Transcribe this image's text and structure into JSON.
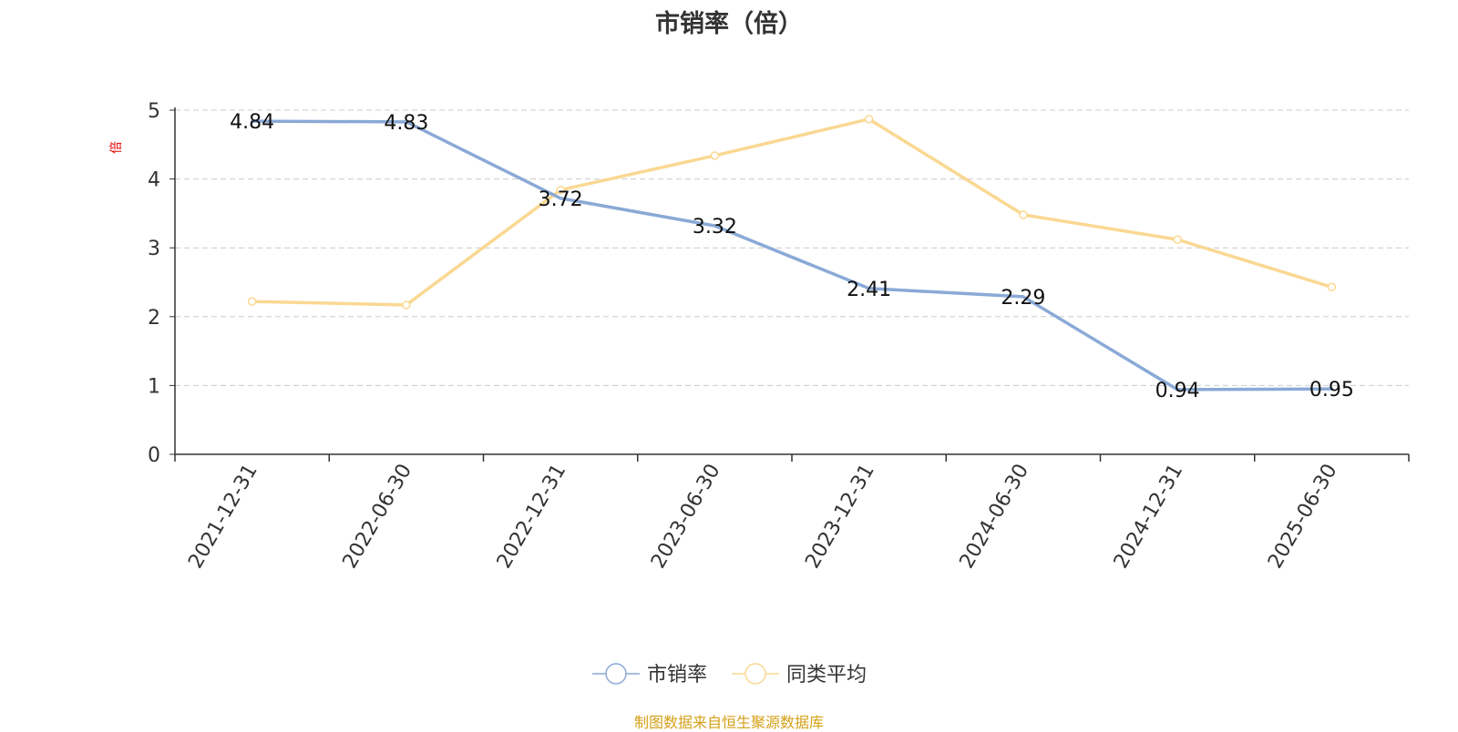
{
  "chart_data": {
    "type": "line",
    "title": "市销率（倍）",
    "ylabel": "倍",
    "xlabel": "",
    "categories": [
      "2021-12-31",
      "2022-06-30",
      "2022-12-31",
      "2023-06-30",
      "2023-12-31",
      "2024-06-30",
      "2024-12-31",
      "2025-06-30"
    ],
    "ylim": [
      0,
      5
    ],
    "yticks": [
      "0",
      "1",
      "2",
      "3",
      "4",
      "5"
    ],
    "grid": true,
    "legend_position": "bottom-center",
    "series": [
      {
        "name": "市销率",
        "color": "#8aa9d6",
        "values": [
          4.84,
          4.83,
          3.72,
          3.32,
          2.41,
          2.29,
          0.94,
          0.95
        ],
        "labels": [
          "4.84",
          "4.83",
          "3.72",
          "3.32",
          "2.41",
          "2.29",
          "0.94",
          "0.95"
        ]
      },
      {
        "name": "同类平均",
        "color": "#fad892",
        "values": [
          2.22,
          2.17,
          3.84,
          4.34,
          4.87,
          3.48,
          3.12,
          2.43
        ]
      }
    ]
  },
  "footer": {
    "source": "制图数据来自恒生聚源数据库"
  },
  "colors": {
    "axis": "#333333",
    "grid": "#cccccc",
    "ylabel": "#e60000",
    "source": "#d4a017"
  }
}
